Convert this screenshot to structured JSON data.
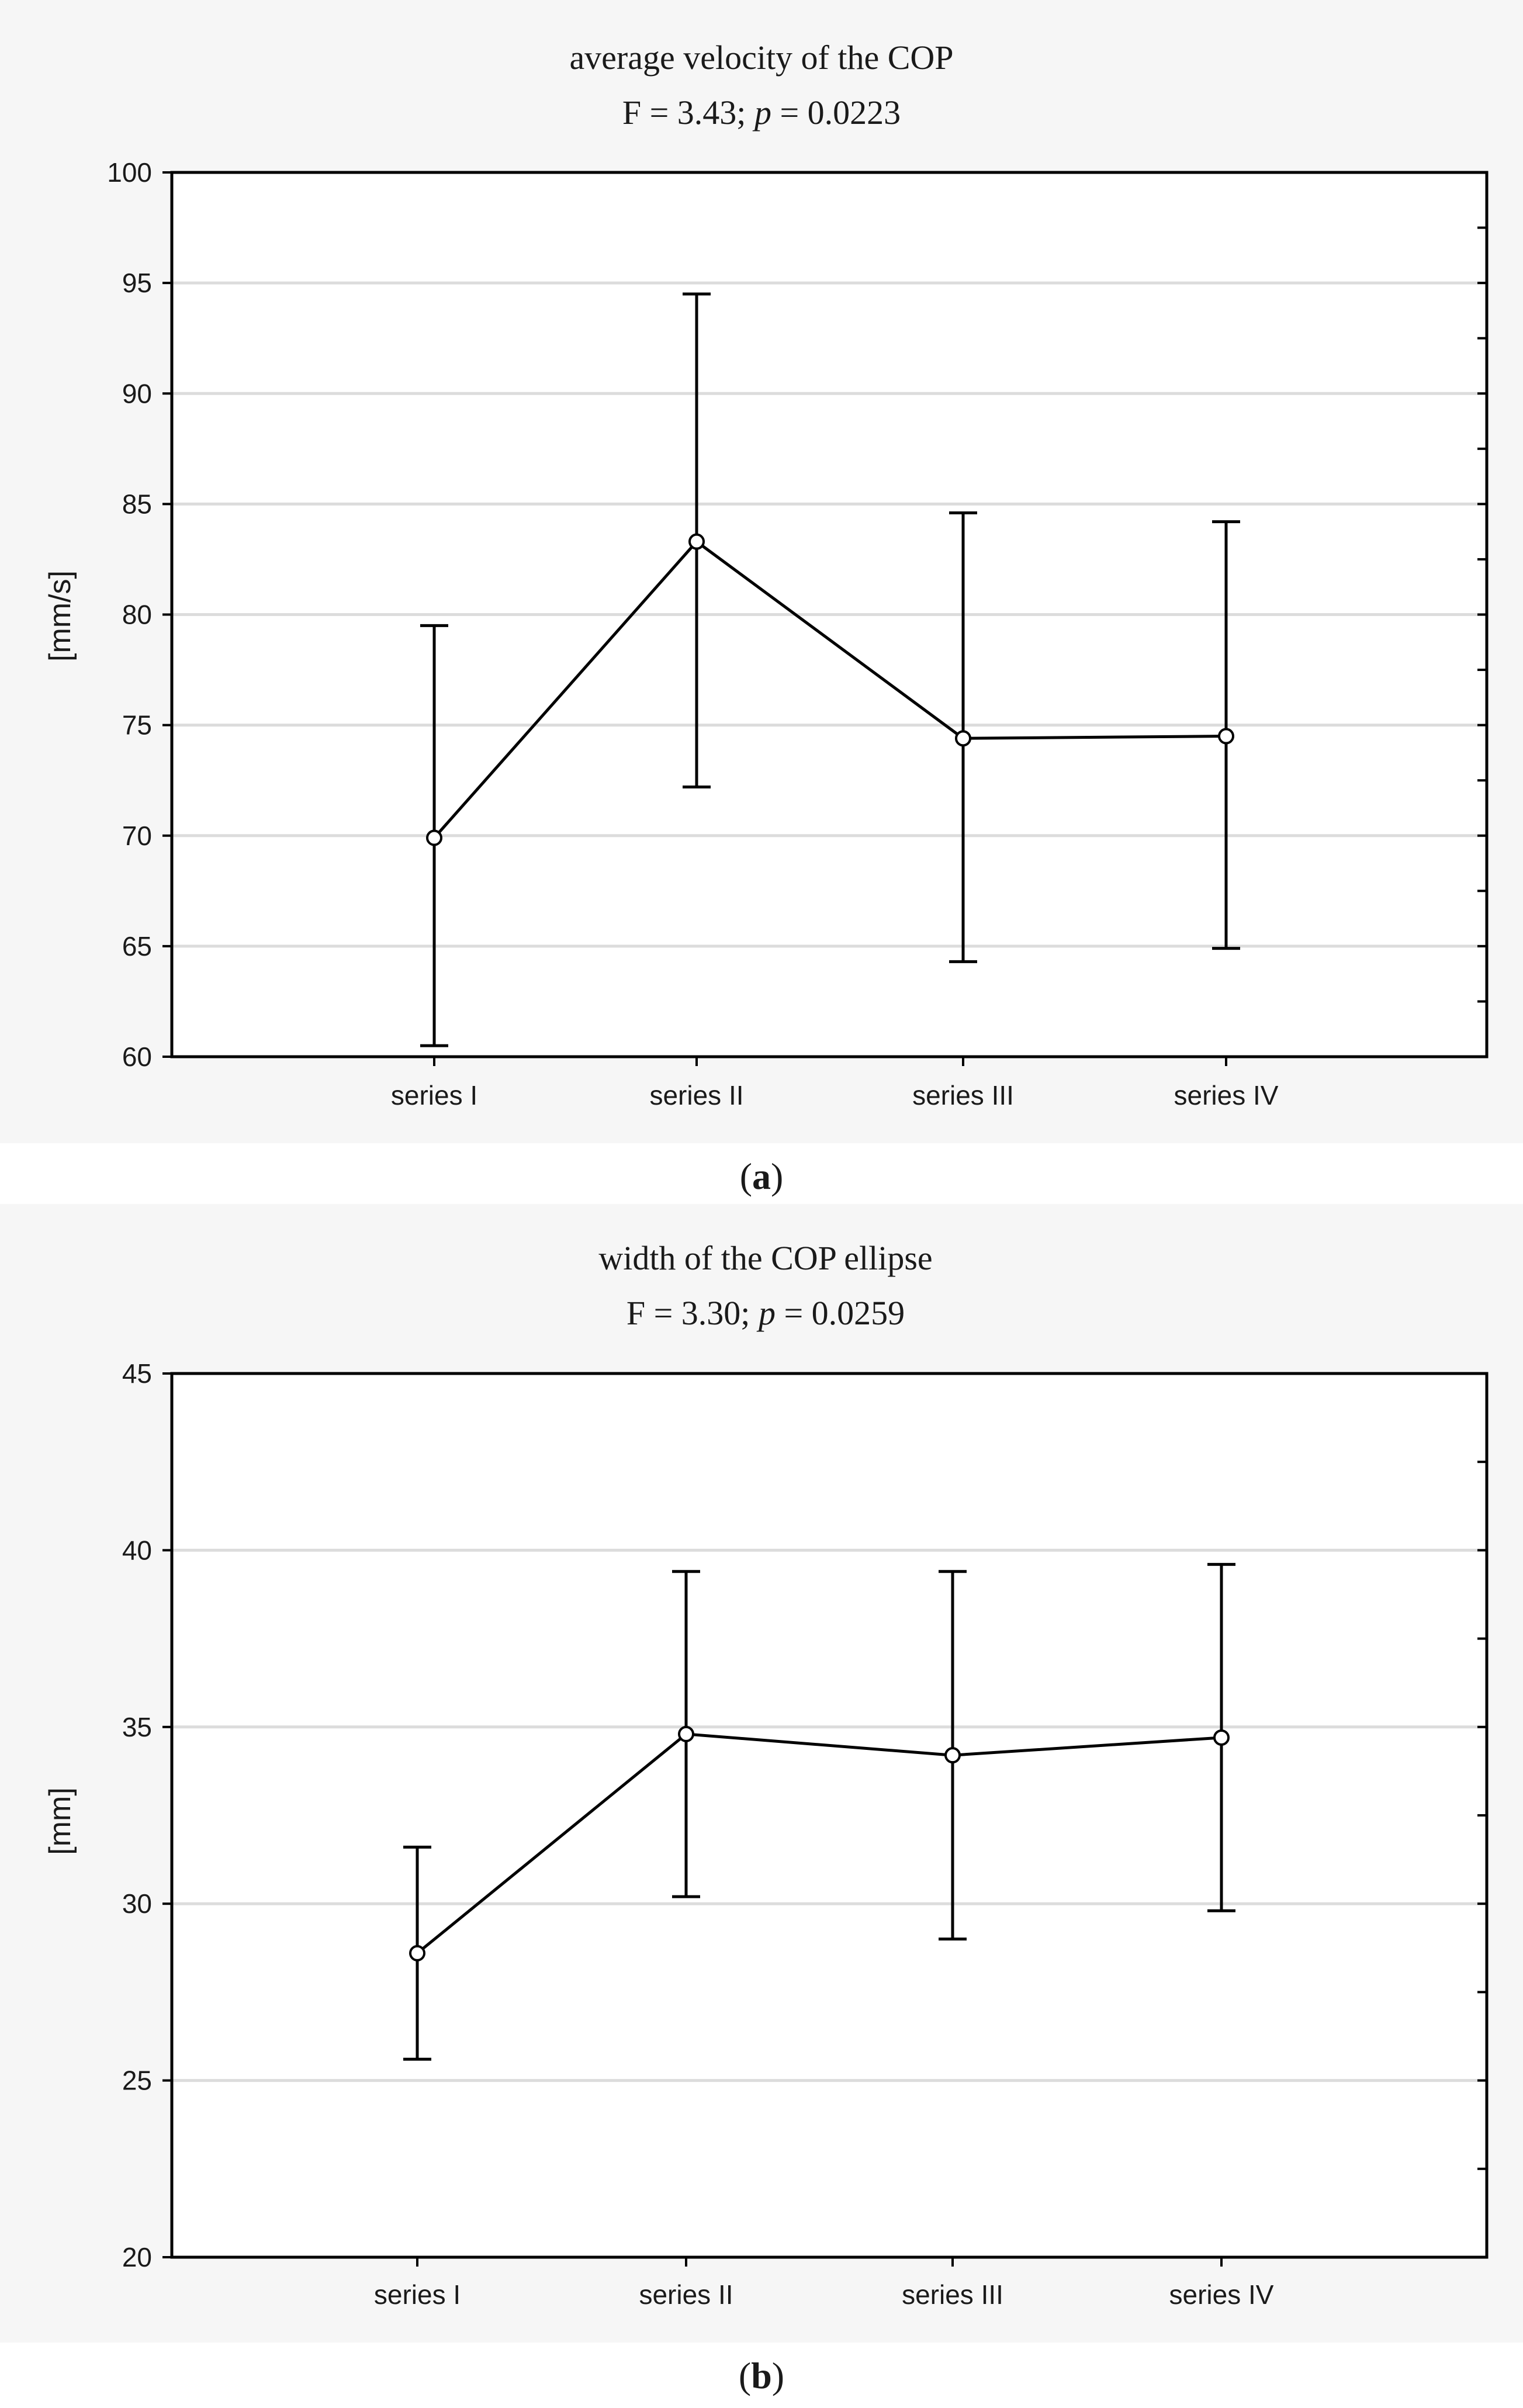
{
  "chart_data": [
    {
      "type": "line",
      "title": "average velocity of the COP",
      "subtitle_stat": "F = 3.43;",
      "subtitle_p_symbol": "p",
      "subtitle_p_value": "= 0.0223",
      "caption_letter": "a",
      "ylabel": "[mm/s]",
      "xlabel": "",
      "ylim": [
        60,
        100
      ],
      "yticks": [
        "60",
        "65",
        "70",
        "75",
        "80",
        "85",
        "90",
        "95",
        "100"
      ],
      "categories": [
        "series I",
        "series II",
        "series III",
        "series IV"
      ],
      "values": [
        69.9,
        83.3,
        74.4,
        74.5
      ],
      "upper": [
        79.5,
        94.5,
        84.6,
        84.2
      ],
      "lower": [
        60.5,
        72.2,
        64.3,
        64.9
      ],
      "grid": true
    },
    {
      "type": "line",
      "title": "width of the COP ellipse",
      "subtitle_stat": "F = 3.30;",
      "subtitle_p_symbol": "p",
      "subtitle_p_value": "= 0.0259",
      "caption_letter": "b",
      "ylabel": "[mm]",
      "xlabel": "",
      "ylim": [
        20,
        45
      ],
      "yticks": [
        "20",
        "25",
        "30",
        "35",
        "40",
        "45"
      ],
      "categories": [
        "series I",
        "series II",
        "series III",
        "series IV"
      ],
      "values": [
        28.6,
        34.8,
        34.2,
        34.7
      ],
      "upper": [
        31.6,
        39.4,
        39.4,
        39.6
      ],
      "lower": [
        25.6,
        30.2,
        29.0,
        29.8
      ],
      "grid": true
    }
  ]
}
